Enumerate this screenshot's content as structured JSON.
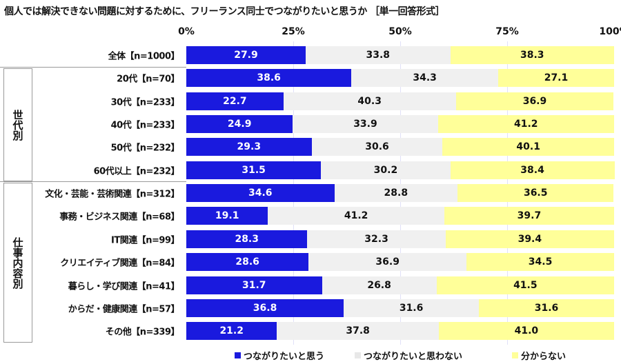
{
  "chart_data": {
    "type": "bar",
    "orientation": "horizontal",
    "stacked": true,
    "title": "個人では解決できない問題に対するために、フリーランス同士でつながりたいと思うか ［単一回答形式］",
    "xlim": [
      0,
      100
    ],
    "x_ticks": [
      "0%",
      "25%",
      "50%",
      "75%",
      "100%"
    ],
    "groups": [
      {
        "label": "世代別",
        "rows": [
          1,
          2,
          3,
          4,
          5
        ]
      },
      {
        "label": "仕事内容別",
        "rows": [
          6,
          7,
          8,
          9,
          10,
          11,
          12
        ]
      }
    ],
    "categories": [
      "全体【n=1000】",
      "20代【n=70】",
      "30代【n=233】",
      "40代【n=233】",
      "50代【n=232】",
      "60代以上【n=232】",
      "文化・芸能・芸術関連【n=312】",
      "事務・ビジネス関連【n=68】",
      "IT関連【n=99】",
      "クリエイティブ関連【n=84】",
      "暮らし・学び関連【n=41】",
      "からだ・健康関連【n=57】",
      "その他【n=339】"
    ],
    "series": [
      {
        "name": "つながりたいと思う",
        "color": "#1a1ade",
        "values": [
          27.9,
          38.6,
          22.7,
          24.9,
          29.3,
          31.5,
          34.6,
          19.1,
          28.3,
          28.6,
          31.7,
          36.8,
          21.2
        ]
      },
      {
        "name": "つながりたいと思わない",
        "color": "#f0f0f0",
        "values": [
          33.8,
          34.3,
          40.3,
          33.9,
          30.6,
          30.2,
          28.8,
          41.2,
          32.3,
          36.9,
          26.8,
          31.6,
          37.8
        ]
      },
      {
        "name": "分からない",
        "color": "#ffff99",
        "values": [
          38.3,
          27.1,
          36.9,
          41.2,
          40.1,
          38.4,
          36.5,
          39.7,
          39.4,
          34.5,
          41.5,
          31.6,
          41.0
        ]
      }
    ],
    "legend": "bottom"
  }
}
